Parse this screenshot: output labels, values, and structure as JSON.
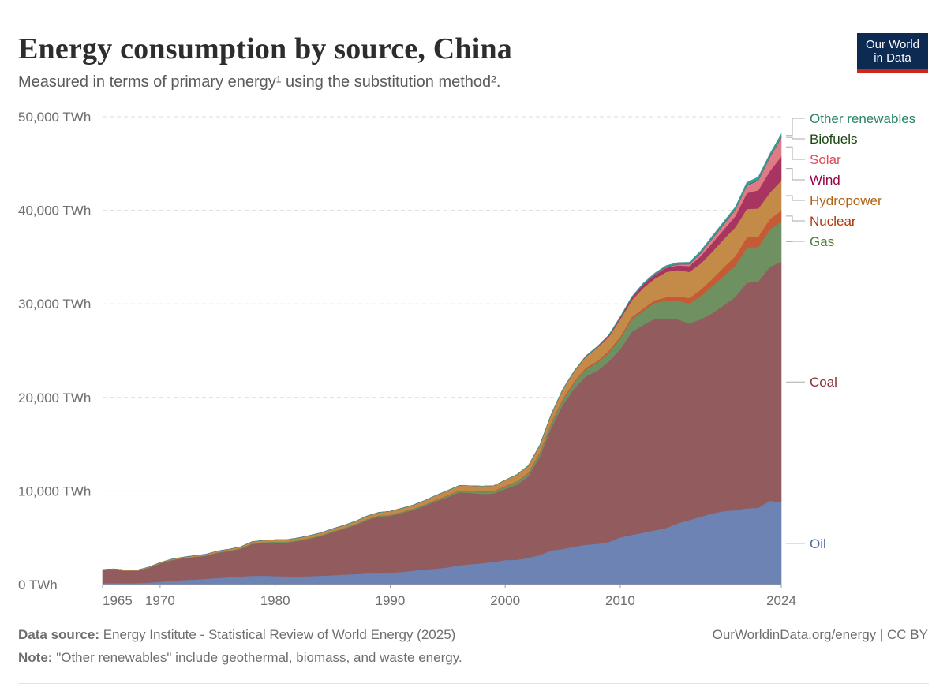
{
  "header": {
    "title": "Energy consumption by source, China",
    "subtitle": "Measured in terms of primary energy¹ using the substitution method².",
    "logo_line1": "Our World",
    "logo_line2": "in Data"
  },
  "footer": {
    "source_label": "Data source:",
    "source_text": "Energy Institute - Statistical Review of World Energy (2025)",
    "note_label": "Note:",
    "note_text": "\"Other renewables\" include geothermal, biomass, and waste energy.",
    "attribution": "OurWorldinData.org/energy | CC BY"
  },
  "chart_data": {
    "type": "area",
    "stacked": true,
    "unit": "TWh",
    "ylim": [
      0,
      50000
    ],
    "yticks": [
      0,
      10000,
      20000,
      30000,
      40000,
      50000
    ],
    "ytick_labels": [
      "0 TWh",
      "10,000 TWh",
      "20,000 TWh",
      "30,000 TWh",
      "40,000 TWh",
      "50,000 TWh"
    ],
    "xlim": [
      1965,
      2024
    ],
    "xticks": [
      1965,
      1970,
      1980,
      1990,
      2000,
      2010,
      2024
    ],
    "x": [
      1965,
      1966,
      1967,
      1968,
      1969,
      1970,
      1971,
      1972,
      1973,
      1974,
      1975,
      1976,
      1977,
      1978,
      1979,
      1980,
      1981,
      1982,
      1983,
      1984,
      1985,
      1986,
      1987,
      1988,
      1989,
      1990,
      1991,
      1992,
      1993,
      1994,
      1995,
      1996,
      1997,
      1998,
      1999,
      2000,
      2001,
      2002,
      2003,
      2004,
      2005,
      2006,
      2007,
      2008,
      2009,
      2010,
      2011,
      2012,
      2013,
      2014,
      2015,
      2016,
      2017,
      2018,
      2019,
      2020,
      2021,
      2022,
      2023,
      2024
    ],
    "grid": true,
    "legend_position": "right, inline labels",
    "series": [
      {
        "name": "Oil",
        "color": "#6d83b3",
        "label_color": "#4c6a9c",
        "values": [
          150,
          170,
          140,
          160,
          220,
          300,
          400,
          480,
          540,
          620,
          700,
          780,
          860,
          930,
          950,
          900,
          880,
          860,
          900,
          940,
          1000,
          1060,
          1120,
          1200,
          1260,
          1250,
          1350,
          1480,
          1620,
          1700,
          1840,
          2050,
          2180,
          2280,
          2420,
          2620,
          2650,
          2850,
          3150,
          3650,
          3800,
          4050,
          4250,
          4350,
          4550,
          5050,
          5300,
          5550,
          5800,
          6050,
          6550,
          6900,
          7250,
          7600,
          7850,
          7950,
          8150,
          8200,
          8950,
          8800
        ]
      },
      {
        "name": "Coal",
        "color": "#925b5d",
        "label_color": "#883039",
        "values": [
          1400,
          1430,
          1330,
          1300,
          1560,
          1950,
          2200,
          2320,
          2400,
          2450,
          2700,
          2800,
          2950,
          3400,
          3500,
          3600,
          3600,
          3800,
          4000,
          4250,
          4600,
          4900,
          5250,
          5700,
          6000,
          6100,
          6300,
          6500,
          6800,
          7200,
          7500,
          7800,
          7600,
          7400,
          7300,
          7600,
          8000,
          8700,
          10500,
          13100,
          15400,
          16900,
          18000,
          18500,
          19300,
          20100,
          21700,
          22200,
          22600,
          22400,
          21800,
          21000,
          21100,
          21400,
          22000,
          22800,
          24100,
          24200,
          25000,
          25700
        ]
      },
      {
        "name": "Gas",
        "color": "#6f9060",
        "label_color": "#54813d",
        "values": [
          10,
          10,
          10,
          10,
          15,
          20,
          25,
          30,
          35,
          45,
          55,
          65,
          75,
          85,
          90,
          90,
          90,
          90,
          90,
          95,
          100,
          100,
          110,
          110,
          110,
          120,
          130,
          130,
          140,
          140,
          160,
          170,
          200,
          210,
          220,
          250,
          300,
          330,
          370,
          430,
          500,
          620,
          750,
          850,
          950,
          1150,
          1350,
          1500,
          1700,
          1900,
          2000,
          2150,
          2500,
          2900,
          3150,
          3350,
          3750,
          3700,
          4000,
          4300
        ]
      },
      {
        "name": "Nuclear",
        "color": "#c65a34",
        "label_color": "#b13507",
        "values": [
          0,
          0,
          0,
          0,
          0,
          0,
          0,
          0,
          0,
          0,
          0,
          0,
          0,
          0,
          0,
          0,
          0,
          0,
          0,
          0,
          0,
          0,
          0,
          0,
          0,
          0,
          0,
          0,
          0,
          50,
          50,
          60,
          60,
          60,
          60,
          70,
          70,
          80,
          110,
          130,
          150,
          150,
          170,
          180,
          190,
          200,
          240,
          260,
          300,
          360,
          460,
          570,
          680,
          780,
          930,
          990,
          1100,
          1090,
          1130,
          1170
        ]
      },
      {
        "name": "Hydropower",
        "color": "#c48b48",
        "label_color": "#b16214",
        "values": [
          50,
          60,
          60,
          65,
          70,
          80,
          90,
          100,
          120,
          130,
          140,
          140,
          150,
          170,
          190,
          200,
          220,
          240,
          260,
          260,
          270,
          280,
          300,
          320,
          340,
          360,
          370,
          390,
          420,
          460,
          500,
          500,
          520,
          560,
          560,
          620,
          720,
          730,
          740,
          870,
          1000,
          1070,
          1170,
          1440,
          1490,
          1860,
          1800,
          2200,
          2300,
          2700,
          2800,
          2800,
          2800,
          2900,
          3000,
          3100,
          3050,
          3000,
          2800,
          3200
        ]
      },
      {
        "name": "Wind",
        "color": "#a83561",
        "label_color": "#970046",
        "values": [
          0,
          0,
          0,
          0,
          0,
          0,
          0,
          0,
          0,
          0,
          0,
          0,
          0,
          0,
          0,
          0,
          0,
          0,
          0,
          0,
          0,
          0,
          0,
          0,
          0,
          0,
          0,
          0,
          0,
          0,
          0,
          0,
          0,
          0,
          0,
          0,
          0,
          0,
          0,
          0,
          10,
          20,
          40,
          70,
          130,
          190,
          270,
          360,
          410,
          450,
          500,
          620,
          790,
          940,
          1020,
          1190,
          1680,
          1960,
          2300,
          2600
        ]
      },
      {
        "name": "Solar",
        "color": "#e07b83",
        "label_color": "#df4b58",
        "values": [
          0,
          0,
          0,
          0,
          0,
          0,
          0,
          0,
          0,
          0,
          0,
          0,
          0,
          0,
          0,
          0,
          0,
          0,
          0,
          0,
          0,
          0,
          0,
          0,
          0,
          0,
          0,
          0,
          0,
          0,
          0,
          0,
          0,
          0,
          0,
          0,
          0,
          0,
          0,
          0,
          0,
          0,
          0,
          0,
          0,
          0,
          10,
          20,
          40,
          70,
          120,
          200,
          310,
          460,
          560,
          660,
          800,
          1050,
          1480,
          2000
        ]
      },
      {
        "name": "Biofuels",
        "color": "#2f4f7f",
        "label_color": "#18470f",
        "values": [
          0,
          0,
          0,
          0,
          0,
          0,
          0,
          0,
          0,
          0,
          0,
          0,
          0,
          0,
          0,
          0,
          0,
          0,
          0,
          0,
          0,
          0,
          0,
          0,
          0,
          0,
          0,
          0,
          0,
          0,
          0,
          0,
          0,
          0,
          0,
          0,
          5,
          5,
          5,
          10,
          10,
          15,
          15,
          20,
          20,
          25,
          25,
          30,
          30,
          35,
          35,
          40,
          40,
          45,
          50,
          50,
          55,
          55,
          60,
          60
        ]
      },
      {
        "name": "Other renewables",
        "color": "#3c9a93",
        "label_color": "#2c8465",
        "values": [
          0,
          0,
          0,
          0,
          0,
          0,
          0,
          0,
          0,
          0,
          0,
          0,
          0,
          0,
          0,
          0,
          0,
          0,
          0,
          0,
          0,
          0,
          0,
          0,
          0,
          0,
          0,
          0,
          0,
          0,
          0,
          0,
          0,
          0,
          0,
          0,
          10,
          10,
          15,
          20,
          25,
          30,
          35,
          40,
          50,
          60,
          70,
          90,
          110,
          130,
          150,
          170,
          200,
          220,
          240,
          260,
          290,
          300,
          320,
          330
        ]
      }
    ]
  }
}
